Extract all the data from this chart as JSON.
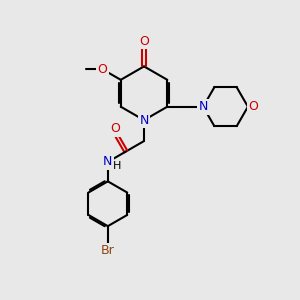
{
  "bg_color": "#e8e8e8",
  "bond_color": "#000000",
  "N_color": "#0000cc",
  "O_color": "#cc0000",
  "Br_color": "#8B4513",
  "line_width": 1.5,
  "font_size": 9,
  "fig_size": [
    3.0,
    3.0
  ],
  "dpi": 100,
  "xlim": [
    0,
    10
  ],
  "ylim": [
    0,
    10
  ]
}
